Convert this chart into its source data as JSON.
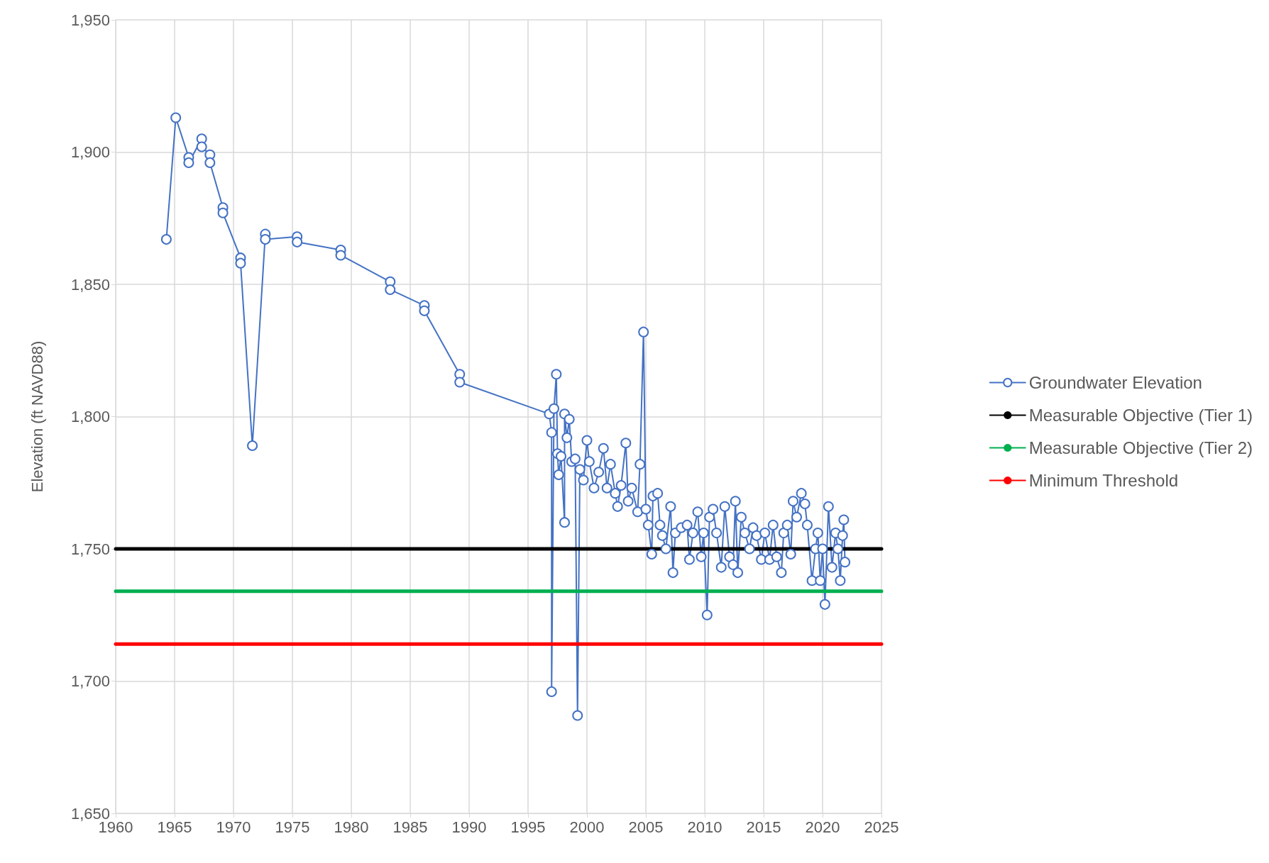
{
  "chart_data": {
    "type": "line",
    "ylabel": "Elevation (ft NAVD88)",
    "xlim": [
      1960,
      2025
    ],
    "xticks": [
      1960,
      1965,
      1970,
      1975,
      1980,
      1985,
      1990,
      1995,
      2000,
      2005,
      2010,
      2015,
      2020,
      2025
    ],
    "ylim": [
      1650,
      1950
    ],
    "yticks": [
      {
        "value": 1650,
        "label": "1,650"
      },
      {
        "value": 1700,
        "label": "1,700"
      },
      {
        "value": 1750,
        "label": "1,750"
      },
      {
        "value": 1800,
        "label": "1,800"
      },
      {
        "value": 1850,
        "label": "1,850"
      },
      {
        "value": 1900,
        "label": "1,900"
      },
      {
        "value": 1950,
        "label": "1,950"
      }
    ],
    "grid": true,
    "legend": "right",
    "series": [
      {
        "name": "Groundwater Elevation",
        "color": "#4472c4",
        "marker": "circle",
        "x": [
          1964.3,
          1965.1,
          1966.2,
          1966.2,
          1967.3,
          1967.3,
          1968.0,
          1968.0,
          1969.1,
          1969.1,
          1970.6,
          1970.6,
          1971.6,
          1972.7,
          1972.7,
          1975.4,
          1975.4,
          1979.1,
          1979.1,
          1983.3,
          1983.3,
          1986.2,
          1986.2,
          1989.2,
          1989.2,
          1996.8,
          1997.0,
          1997.0,
          1997.2,
          1997.4,
          1997.5,
          1997.6,
          1997.8,
          1998.1,
          1998.1,
          1998.3,
          1998.5,
          1998.7,
          1999.0,
          1999.2,
          1999.4,
          1999.7,
          2000.0,
          2000.2,
          2000.6,
          2001.0,
          2001.4,
          2001.7,
          2002.0,
          2002.4,
          2002.6,
          2002.9,
          2003.3,
          2003.5,
          2003.8,
          2004.3,
          2004.5,
          2004.8,
          2005.0,
          2005.2,
          2005.5,
          2005.6,
          2006.0,
          2006.2,
          2006.4,
          2006.7,
          2007.1,
          2007.3,
          2007.5,
          2008.0,
          2008.5,
          2008.7,
          2009.0,
          2009.4,
          2009.7,
          2009.9,
          2010.2,
          2010.4,
          2010.7,
          2011.0,
          2011.4,
          2011.7,
          2012.1,
          2012.4,
          2012.6,
          2012.8,
          2013.1,
          2013.4,
          2013.8,
          2014.1,
          2014.4,
          2014.8,
          2015.1,
          2015.5,
          2015.8,
          2016.1,
          2016.5,
          2016.7,
          2017.0,
          2017.3,
          2017.5,
          2017.8,
          2018.2,
          2018.5,
          2018.7,
          2019.1,
          2019.4,
          2019.6,
          2019.8,
          2020.0,
          2020.2,
          2020.5,
          2020.8,
          2021.1,
          2021.3,
          2021.5,
          2021.7,
          2021.8,
          2021.9
        ],
        "values": [
          1867,
          1913,
          1898,
          1896,
          1905,
          1902,
          1899,
          1896,
          1879,
          1877,
          1860,
          1858,
          1789,
          1869,
          1867,
          1868,
          1866,
          1863,
          1861,
          1851,
          1848,
          1842,
          1840,
          1816,
          1813,
          1801,
          1794,
          1696,
          1803,
          1816,
          1786,
          1778,
          1785,
          1760,
          1801,
          1792,
          1799,
          1783,
          1784,
          1687,
          1780,
          1776,
          1791,
          1783,
          1773,
          1779,
          1788,
          1773,
          1782,
          1771,
          1766,
          1774,
          1790,
          1768,
          1773,
          1764,
          1782,
          1832,
          1765,
          1759,
          1748,
          1770,
          1771,
          1759,
          1755,
          1750,
          1766,
          1741,
          1756,
          1758,
          1759,
          1746,
          1756,
          1764,
          1747,
          1756,
          1725,
          1762,
          1765,
          1756,
          1743,
          1766,
          1747,
          1744,
          1768,
          1741,
          1762,
          1756,
          1750,
          1758,
          1755,
          1746,
          1756,
          1746,
          1759,
          1747,
          1741,
          1756,
          1759,
          1748,
          1768,
          1762,
          1771,
          1767,
          1759,
          1738,
          1750,
          1756,
          1738,
          1750,
          1729,
          1766,
          1743,
          1756,
          1750,
          1738,
          1755,
          1761,
          1745
        ]
      },
      {
        "name": "Measurable Objective (Tier 1)",
        "color": "#000000",
        "marker": "none",
        "x": [
          1960,
          2025
        ],
        "values": [
          1750,
          1750
        ]
      },
      {
        "name": "Measurable Objective (Tier 2)",
        "color": "#00b050",
        "marker": "none",
        "x": [
          1960,
          2025
        ],
        "values": [
          1734,
          1734
        ]
      },
      {
        "name": "Minimum Threshold",
        "color": "#ff0000",
        "marker": "none",
        "x": [
          1960,
          2025
        ],
        "values": [
          1714,
          1714
        ]
      }
    ]
  }
}
